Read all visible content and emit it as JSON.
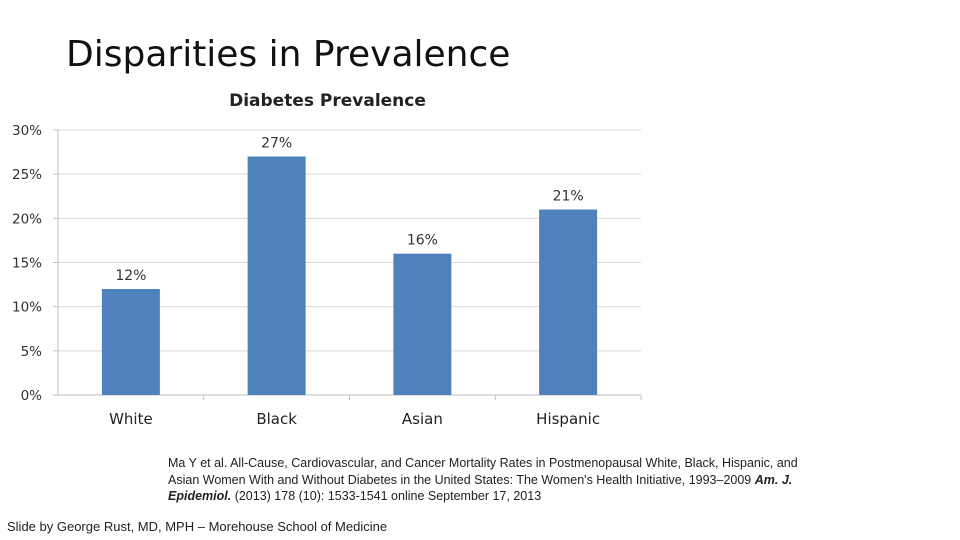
{
  "slide": {
    "title": "Disparities in Prevalence",
    "citation_pre": "Ma Y et al. All-Cause, Cardiovascular, and Cancer Mortality Rates in Postmenopausal White, Black, Hispanic, and Asian Women With and Without Diabetes in the United States: The Women's Health Initiative, 1993–2009",
    "citation_journal": "Am. J. Epidemiol.",
    "citation_post": "(2013) 178 (10): 1533-1541 online September 17, 2013",
    "credit": "Slide by George Rust, MD, MPH – Morehouse School of  Medicine"
  },
  "chart_data": {
    "type": "bar",
    "title": "Diabetes Prevalence",
    "categories": [
      "White",
      "Black",
      "Asian",
      "Hispanic"
    ],
    "values": [
      12,
      27,
      16,
      21
    ],
    "value_labels": [
      "12%",
      "27%",
      "16%",
      "21%"
    ],
    "ylim": [
      0,
      30
    ],
    "y_ticks": [
      0,
      5,
      10,
      15,
      20,
      25,
      30
    ],
    "y_tick_labels": [
      "0%",
      "5%",
      "10%",
      "15%",
      "20%",
      "25%",
      "30%"
    ],
    "xlabel": "",
    "ylabel": "",
    "grid": true,
    "bar_color": "#4F81BD",
    "grid_color": "#D9D9D9",
    "axis_color": "#BFBFBF"
  }
}
